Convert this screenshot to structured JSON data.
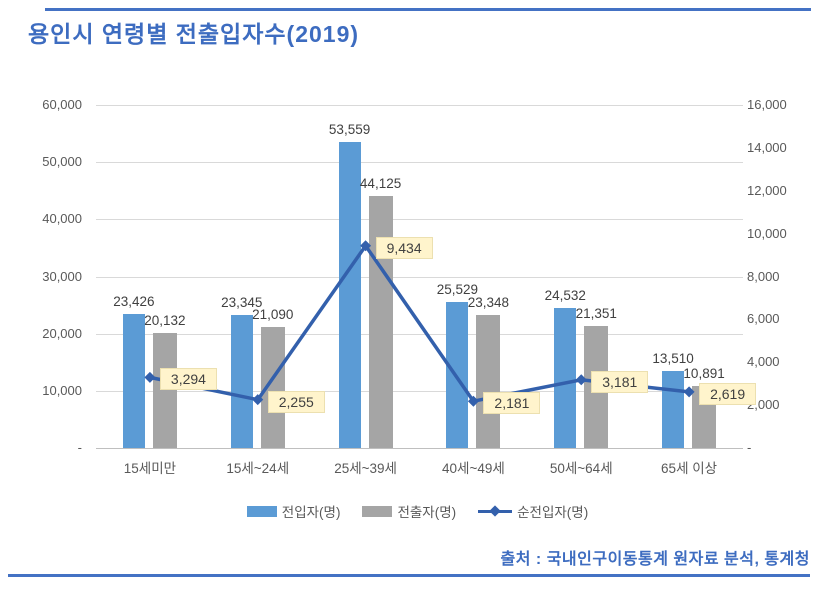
{
  "title": "용인시 연령별 전출입자수(2019)",
  "source": "출처 : 국내인구이동통계 원자료 분석, 통계청",
  "colors": {
    "accent_rule": "#4472C4",
    "title_text": "#3D6CC0",
    "bar_inflow": "#5B9BD5",
    "bar_outflow": "#A5A5A5",
    "line_net": "#3360AC",
    "value_tag_bg": "#FFF4CC",
    "tick_text": "#595959",
    "label_text": "#404040",
    "gridline": "#D9D9D9"
  },
  "chart_data": {
    "type": "combo-bar-line",
    "categories": [
      "15세미만",
      "15세~24세",
      "25세~39세",
      "40세~49세",
      "50세~64세",
      "65세 이상"
    ],
    "series": [
      {
        "name": "전입자(명)",
        "id": "inflow",
        "type": "bar",
        "axis": "left",
        "color": "#5B9BD5",
        "values": [
          23426,
          23345,
          53559,
          25529,
          24532,
          13510
        ]
      },
      {
        "name": "전출자(명)",
        "id": "outflow",
        "type": "bar",
        "axis": "left",
        "color": "#A5A5A5",
        "values": [
          20132,
          21090,
          44125,
          23348,
          21351,
          10891
        ]
      },
      {
        "name": "순전입자(명)",
        "id": "net-inflow",
        "type": "line",
        "axis": "right",
        "color": "#3360AC",
        "values": [
          3294,
          2255,
          9434,
          2181,
          3181,
          2619
        ]
      }
    ],
    "left_axis": {
      "min": 0,
      "max": 60000,
      "step": 10000,
      "tick_labels": [
        "60,000",
        "50,000",
        "40,000",
        "30,000",
        "20,000",
        "10,000",
        "-"
      ]
    },
    "right_axis": {
      "min": 0,
      "max": 16000,
      "step": 2000,
      "tick_labels": [
        "16,000",
        "14,000",
        "12,000",
        "10,000",
        "8,000",
        "6,000",
        "4,000",
        "2,000",
        "-"
      ]
    },
    "grid": true,
    "legend_position": "bottom",
    "data_labels": "all"
  }
}
